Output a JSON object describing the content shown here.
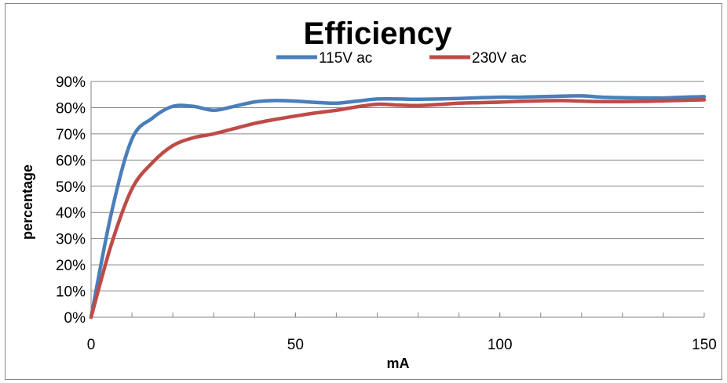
{
  "chart_data": {
    "type": "line",
    "title": "Efficiency",
    "xlabel": "mA",
    "ylabel": "percentage",
    "xlim": [
      0,
      150
    ],
    "ylim": [
      0,
      90
    ],
    "x_ticks": [
      0,
      50,
      100,
      150
    ],
    "x_minor_step": 10,
    "y_ticks": [
      0,
      10,
      20,
      30,
      40,
      50,
      60,
      70,
      80,
      90
    ],
    "y_tick_labels": [
      "0%",
      "10%",
      "20%",
      "30%",
      "40%",
      "50%",
      "60%",
      "70%",
      "80%",
      "90%"
    ],
    "grid": "horizontal",
    "legend_position": "top",
    "series": [
      {
        "name": "115V ac",
        "color": "#4a7ebb",
        "x": [
          0,
          5,
          10,
          15,
          20,
          25,
          30,
          35,
          40,
          45,
          50,
          55,
          60,
          65,
          70,
          75,
          80,
          85,
          90,
          95,
          100,
          105,
          110,
          115,
          120,
          125,
          130,
          135,
          140,
          145,
          150
        ],
        "y": [
          0,
          40,
          68,
          76,
          80.5,
          80.5,
          79,
          80.5,
          82.2,
          82.7,
          82.5,
          82,
          81.7,
          82.5,
          83.3,
          83.3,
          83.2,
          83.3,
          83.5,
          83.8,
          84,
          84,
          84.2,
          84.4,
          84.5,
          84,
          83.8,
          83.7,
          83.7,
          84,
          84.2
        ]
      },
      {
        "name": "230V ac",
        "color": "#be4b48",
        "x": [
          0,
          5,
          10,
          15,
          20,
          25,
          30,
          35,
          40,
          45,
          50,
          55,
          60,
          65,
          70,
          75,
          80,
          85,
          90,
          95,
          100,
          105,
          110,
          115,
          120,
          125,
          130,
          135,
          140,
          145,
          150
        ],
        "y": [
          0,
          28,
          49,
          59,
          65.5,
          68.5,
          70,
          72,
          74,
          75.5,
          76.8,
          78,
          79,
          80.3,
          81.3,
          81,
          80.8,
          81.2,
          81.7,
          81.9,
          82.1,
          82.4,
          82.6,
          82.7,
          82.5,
          82.3,
          82.3,
          82.4,
          82.6,
          82.8,
          83
        ]
      }
    ]
  }
}
